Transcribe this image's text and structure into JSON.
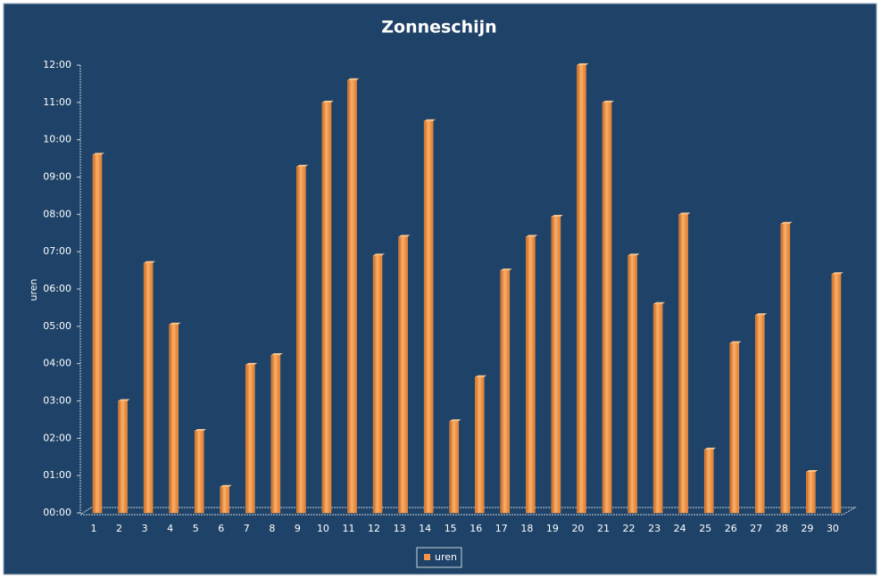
{
  "chart_data": {
    "type": "bar",
    "title": "Zonneschijn",
    "ylabel": "uren",
    "categories": [
      "1",
      "2",
      "3",
      "4",
      "5",
      "6",
      "7",
      "8",
      "9",
      "10",
      "11",
      "12",
      "13",
      "14",
      "15",
      "16",
      "17",
      "18",
      "19",
      "20",
      "21",
      "22",
      "23",
      "24",
      "25",
      "26",
      "27",
      "28",
      "29",
      "30"
    ],
    "series": [
      {
        "name": "uren",
        "color": "#f79646",
        "values": [
          9.6,
          3.0,
          6.7,
          5.05,
          2.2,
          0.7,
          3.97,
          4.23,
          9.28,
          11.0,
          11.6,
          6.9,
          7.4,
          10.5,
          2.46,
          3.64,
          6.5,
          7.4,
          7.94,
          12.0,
          11.0,
          6.9,
          5.6,
          8.0,
          1.7,
          4.55,
          5.3,
          7.75,
          1.1,
          6.4
        ]
      }
    ],
    "ylim": [
      0,
      12
    ],
    "yticks": [
      {
        "value": 0,
        "label": "00:00"
      },
      {
        "value": 1,
        "label": "01:00"
      },
      {
        "value": 2,
        "label": "02:00"
      },
      {
        "value": 3,
        "label": "03:00"
      },
      {
        "value": 4,
        "label": "04:00"
      },
      {
        "value": 5,
        "label": "05:00"
      },
      {
        "value": 6,
        "label": "06:00"
      },
      {
        "value": 7,
        "label": "07:00"
      },
      {
        "value": 8,
        "label": "08:00"
      },
      {
        "value": 9,
        "label": "09:00"
      },
      {
        "value": 10,
        "label": "10:00"
      },
      {
        "value": 11,
        "label": "11:00"
      },
      {
        "value": 12,
        "label": "12:00"
      }
    ],
    "grid": false,
    "legend": "bottom"
  }
}
